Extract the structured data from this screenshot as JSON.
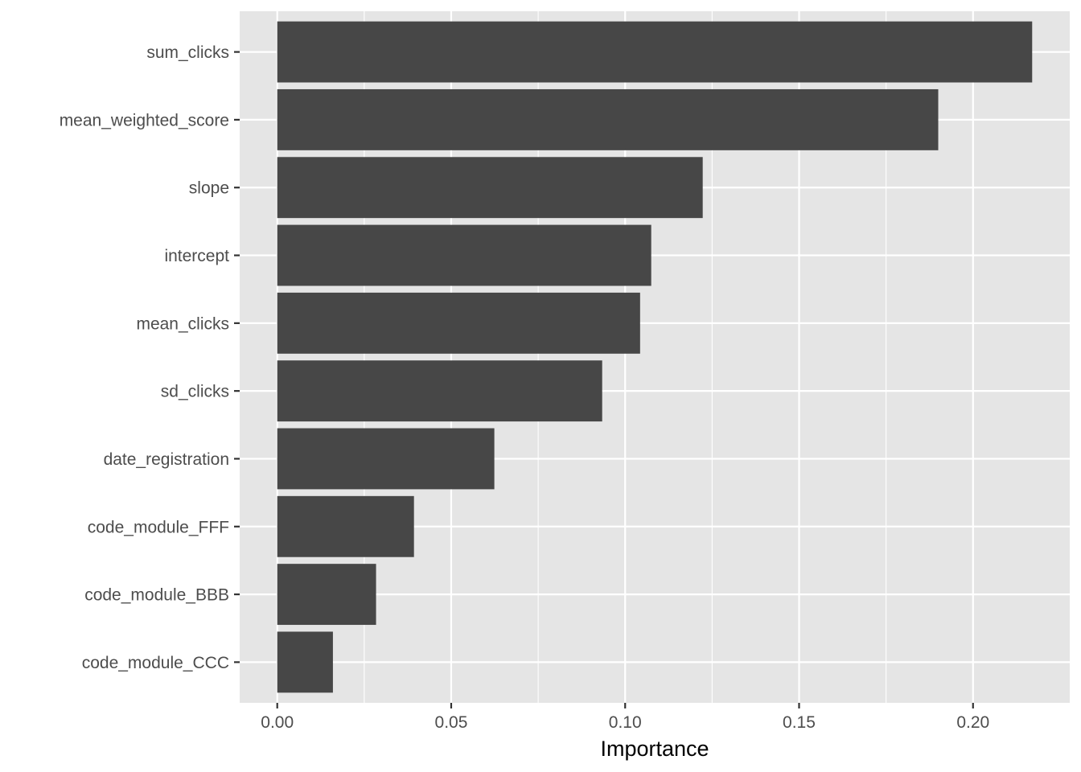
{
  "chart_data": {
    "type": "bar",
    "orientation": "horizontal",
    "categories": [
      "sum_clicks",
      "mean_weighted_score",
      "slope",
      "intercept",
      "mean_clicks",
      "sd_clicks",
      "date_registration",
      "code_module_FFF",
      "code_module_BBB",
      "code_module_CCC"
    ],
    "values": [
      0.217,
      0.19,
      0.1223,
      0.1075,
      0.1043,
      0.0934,
      0.0624,
      0.0393,
      0.0284,
      0.016
    ],
    "title": "",
    "xlabel": "Importance",
    "ylabel": "",
    "xlim": [
      -0.0108,
      0.2278
    ],
    "x_ticks": [
      "0.00",
      "0.05",
      "0.10",
      "0.15",
      "0.20"
    ],
    "grid": true,
    "legend": "none",
    "colors": {
      "bar": "#474747",
      "panel_background": "#e5e5e5",
      "grid": "#ffffff",
      "tick_text": "#4d4d4d",
      "tick_mark": "#333333",
      "axis_title": "#000000"
    }
  }
}
